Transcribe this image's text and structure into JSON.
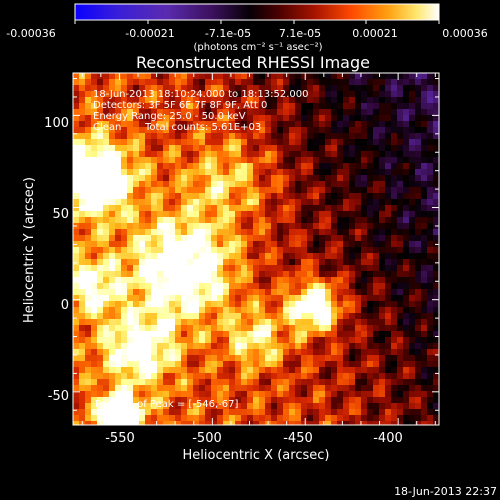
{
  "colorbar": {
    "tick_labels": [
      "-0.00036",
      "-0.00021",
      "-7.1e-05",
      "7.1e-05",
      "0.00021",
      "0.00036"
    ],
    "unit_label": "(photons cm⁻² s⁻¹ asec⁻²)"
  },
  "plot": {
    "title": "Reconstructed RHESSI Image",
    "xlabel": "Heliocentric X (arcsec)",
    "ylabel": "Heliocentric Y (arcsec)",
    "x_ticks": [
      "-550",
      "-500",
      "-450",
      "-400"
    ],
    "y_ticks": [
      "100",
      "50",
      "0",
      "-50"
    ],
    "x_range": [
      -575,
      -378
    ],
    "y_range": [
      -68,
      123
    ]
  },
  "info": {
    "time_range": "18-Jun-2013 18:10:24.000 to 18:13:52.000",
    "detectors": "Detectors: 3F 5F 6F 7F 8F 9F, Att 0",
    "energy_range": "Energy Range: 25.0 - 50.0 keV",
    "method": "Clean",
    "total_counts": "Total counts: 5.61E+03"
  },
  "peak_label": "Position of Peak = [-546,-67]",
  "footer_timestamp": "18-Jun-2013 22:37",
  "colors": {
    "colormap": [
      "#0a00ff",
      "#3a1fd8",
      "#5a2bb0",
      "#4b1a7a",
      "#2a0530",
      "#000000",
      "#3a0000",
      "#8a0a00",
      "#d62800",
      "#ff6a00",
      "#ffbf20",
      "#ffff90",
      "#ffffff"
    ],
    "background": "#000000",
    "text": "#ffffff"
  }
}
